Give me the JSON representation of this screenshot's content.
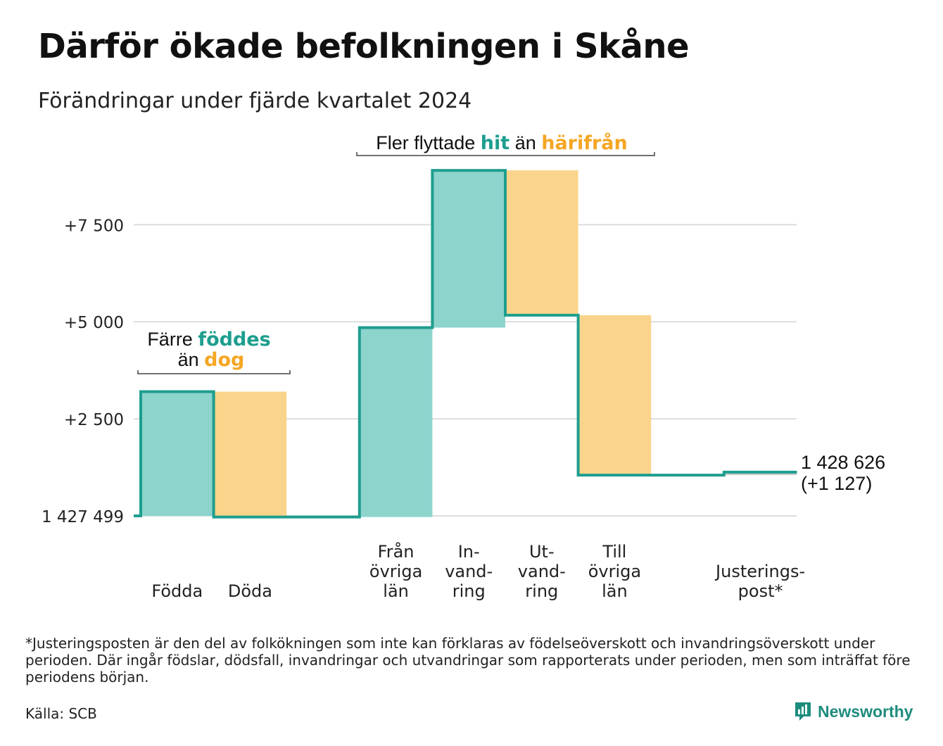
{
  "title": "Därför ökade befolkningen i Skåne",
  "subtitle": "Förändringar under fjärde kvartalet 2024",
  "annotations": {
    "births_deaths": {
      "line1_prefix": "Färre ",
      "line1_highlight": "föddes",
      "line2_prefix": "än ",
      "line2_highlight": "dog"
    },
    "migration": {
      "prefix": "Fler flyttade ",
      "highlight1": "hit",
      "middle": " än ",
      "highlight2": "härifrån"
    }
  },
  "end_label": {
    "total": "1 428 626",
    "change": "(+1 127)"
  },
  "footnote": "*Justeringsposten är den del av folkökningen som inte kan förklaras av födelseöverskott och invandringsöverskott under perioden. Där ingår födslar, dödsfall, invandringar och utvandringar som rapporterats under perioden, men som inträffat före periodens början.",
  "source": "Källa: SCB",
  "brand": {
    "name": "Newsworthy",
    "icon": "newsworthy-logo-icon"
  },
  "colors": {
    "inflow": "#8dd4cd",
    "outflow": "#fad48b",
    "line": "#1e9e8e",
    "accent_teal": "#1e9e8e",
    "accent_orange": "#f5a623",
    "grid": "#dddddd"
  },
  "chart_data": {
    "type": "waterfall",
    "baseline_label": "1 427 499",
    "y_ticks": [
      {
        "value": 2500,
        "label": "+2 500"
      },
      {
        "value": 5000,
        "label": "+5 000"
      },
      {
        "value": 7500,
        "label": "+7 500"
      }
    ],
    "ylim": [
      0,
      8800
    ],
    "steps": [
      {
        "name": "Födda",
        "label_lines": [
          "Födda"
        ],
        "start": 0,
        "end": 3200,
        "kind": "inflow"
      },
      {
        "name": "Döda",
        "label_lines": [
          "Döda"
        ],
        "start": 3200,
        "end": -30,
        "kind": "outflow"
      },
      {
        "name": "gap",
        "label_lines": [],
        "start": -30,
        "end": -30,
        "kind": "gap"
      },
      {
        "name": "Från övriga län",
        "label_lines": [
          "Från",
          "övriga",
          "län"
        ],
        "start": -30,
        "end": 4850,
        "kind": "inflow"
      },
      {
        "name": "Invandring",
        "label_lines": [
          "In-",
          "vand-",
          "ring"
        ],
        "start": 4850,
        "end": 8900,
        "kind": "inflow"
      },
      {
        "name": "Utvandring",
        "label_lines": [
          "Ut-",
          "vand-",
          "ring"
        ],
        "start": 8900,
        "end": 5170,
        "kind": "outflow"
      },
      {
        "name": "Till övriga län",
        "label_lines": [
          "Till",
          "övriga",
          "län"
        ],
        "start": 5170,
        "end": 1050,
        "kind": "outflow"
      },
      {
        "name": "gap2",
        "label_lines": [],
        "start": 1050,
        "end": 1050,
        "kind": "gap"
      },
      {
        "name": "Justeringspost*",
        "label_lines": [
          "Justerings-",
          "post*"
        ],
        "start": 1050,
        "end": 1127,
        "kind": "adjustment"
      }
    ],
    "final_value": 1127
  }
}
